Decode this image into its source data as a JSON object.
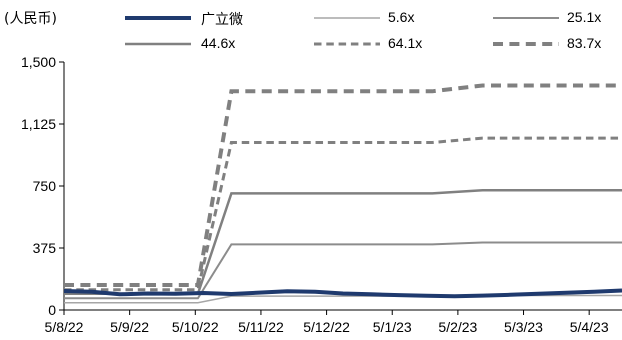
{
  "chart_data": {
    "type": "line",
    "unit_label": "(人民币)",
    "title": "",
    "xlabel": "",
    "ylabel": "",
    "ylim": [
      0,
      1500
    ],
    "y_ticks": [
      0,
      375,
      750,
      1125,
      1500
    ],
    "y_tick_labels": [
      "0",
      "375",
      "750",
      "1,125",
      "1,500"
    ],
    "x_tick_labels": [
      "5/8/22",
      "5/9/22",
      "5/10/22",
      "5/11/22",
      "5/12/22",
      "5/1/23",
      "5/2/23",
      "5/3/23",
      "5/4/23"
    ],
    "grid": false,
    "legend_position": "top",
    "series": [
      {
        "name": "广立微",
        "color": "#1f3a6e",
        "style": "solid",
        "width": 4,
        "x": [
          0.0,
          0.05,
          0.1,
          0.15,
          0.2,
          0.25,
          0.3,
          0.35,
          0.4,
          0.45,
          0.5,
          0.55,
          0.6,
          0.65,
          0.7,
          0.75,
          0.8,
          0.85,
          0.9,
          0.95,
          1.0
        ],
        "values": [
          115,
          110,
          95,
          100,
          98,
          103,
          97,
          105,
          113,
          110,
          100,
          95,
          90,
          86,
          83,
          87,
          92,
          98,
          104,
          110,
          118
        ]
      },
      {
        "name": "5.6x",
        "color": "#a6a6a6",
        "style": "solid",
        "width": 1.5,
        "x": [
          0.0,
          0.24,
          0.3,
          0.66,
          0.75,
          1.0
        ],
        "values": [
          44,
          44,
          84,
          84,
          88,
          88
        ]
      },
      {
        "name": "25.1x",
        "color": "#8c8c8c",
        "style": "solid",
        "width": 2,
        "x": [
          0.0,
          0.24,
          0.3,
          0.66,
          0.75,
          1.0
        ],
        "values": [
          71,
          71,
          397,
          397,
          408,
          408
        ]
      },
      {
        "name": "44.6x",
        "color": "#808080",
        "style": "solid",
        "width": 2.5,
        "x": [
          0.0,
          0.24,
          0.3,
          0.66,
          0.75,
          1.0
        ],
        "values": [
          98,
          98,
          705,
          705,
          724,
          724
        ]
      },
      {
        "name": "64.1x",
        "color": "#808080",
        "style": "dashed",
        "width": 3,
        "x": [
          0.0,
          0.24,
          0.3,
          0.66,
          0.75,
          1.0
        ],
        "values": [
          123,
          123,
          1013,
          1013,
          1040,
          1040
        ]
      },
      {
        "name": "83.7x",
        "color": "#808080",
        "style": "dashed",
        "width": 4,
        "x": [
          0.0,
          0.24,
          0.3,
          0.66,
          0.75,
          1.0
        ],
        "values": [
          151,
          151,
          1323,
          1323,
          1358,
          1358
        ]
      }
    ]
  }
}
